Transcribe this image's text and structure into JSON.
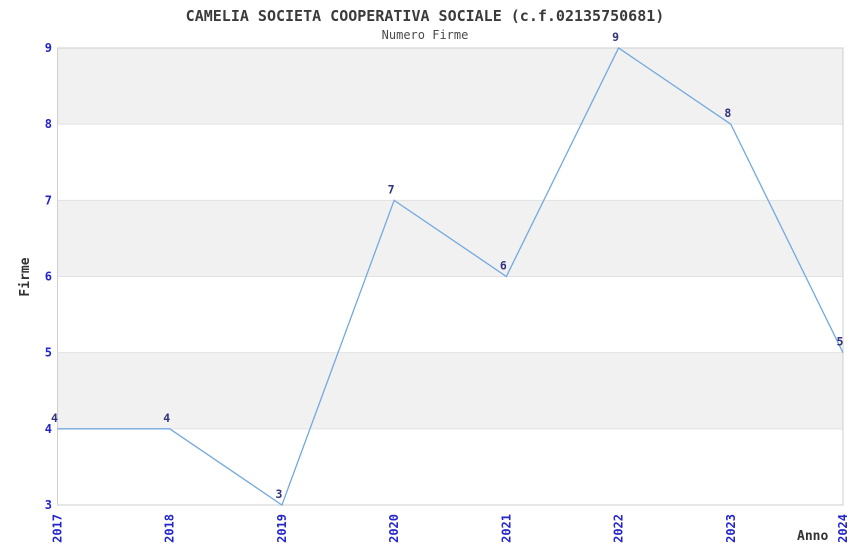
{
  "chart_data": {
    "type": "line",
    "title": "CAMELIA SOCIETA COOPERATIVA SOCIALE (c.f.02135750681)",
    "subtitle": "Numero Firme",
    "xlabel": "Anno",
    "ylabel": "Firme",
    "categories": [
      "2017",
      "2018",
      "2019",
      "2020",
      "2021",
      "2022",
      "2023",
      "2024"
    ],
    "series": [
      {
        "name": "Numero Firme",
        "values": [
          4,
          4,
          3,
          7,
          6,
          9,
          8,
          5
        ]
      }
    ],
    "ylim": [
      3,
      9
    ],
    "yticks": [
      3,
      4,
      5,
      6,
      7,
      8,
      9
    ],
    "legend_position": "none",
    "grid": "horizontal-bands-alternating",
    "x_tick_rotation_deg": 90,
    "colors": {
      "line": "#74a9de",
      "tick_label": "#2525cc",
      "data_label": "#32327e",
      "band_fill": "#f1f1f1",
      "grid_line": "#e2e2e2",
      "plot_border": "#cfcfcf",
      "title_color": "#3b3b3b",
      "axis_label_color": "#333333",
      "background": "#ffffff"
    }
  }
}
